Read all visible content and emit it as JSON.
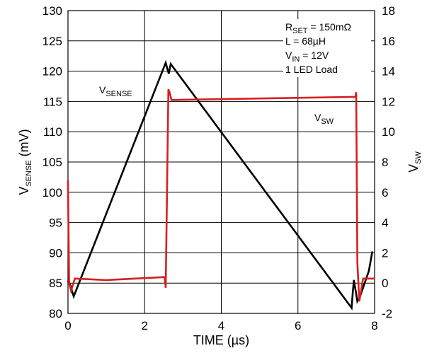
{
  "colors": {
    "background": "#ffffff",
    "grid": "#000000",
    "vsense": "#000000",
    "vsw": "#d62020"
  },
  "chart_data": {
    "type": "line",
    "grid": true,
    "xlabel": "TIME (µs)",
    "ylabel_left": {
      "main": "V",
      "sub": "SENSE",
      "rest": " (mV)"
    },
    "ylabel_right": {
      "main": "V",
      "sub": "SW",
      "rest": ""
    },
    "xlim": [
      0,
      8
    ],
    "ylim_left": [
      80,
      130
    ],
    "ylim_right": [
      -2,
      18
    ],
    "xticks": [
      0,
      2,
      4,
      6,
      8
    ],
    "yticks_left": [
      80,
      85,
      90,
      95,
      100,
      105,
      110,
      115,
      120,
      125,
      130
    ],
    "yticks_right": [
      -2,
      0,
      2,
      4,
      6,
      8,
      10,
      12,
      14,
      16,
      18
    ],
    "annotation_lines": [
      {
        "main": "R",
        "sub": "SET",
        "rest": " = 150mΩ"
      },
      {
        "main": "L = 68µH",
        "sub": "",
        "rest": ""
      },
      {
        "main": "V",
        "sub": "IN",
        "rest": " = 12V"
      },
      {
        "main": "1 LED Load",
        "sub": "",
        "rest": ""
      }
    ],
    "series": [
      {
        "name": "V_SENSE",
        "label": {
          "main": "V",
          "sub": "SENSE"
        },
        "axis": "left",
        "x": [
          0.0,
          0.05,
          0.15,
          2.55,
          2.6,
          2.63,
          2.68,
          7.4,
          7.43,
          7.46,
          7.55,
          7.62,
          7.85,
          7.94
        ],
        "y": [
          85.4,
          84.8,
          82.8,
          121.4,
          120.2,
          119.6,
          121.2,
          80.9,
          83.4,
          85.5,
          82.0,
          82.8,
          87.0,
          90.2
        ]
      },
      {
        "name": "V_SW",
        "label": {
          "main": "V",
          "sub": "SW"
        },
        "axis": "right",
        "x": [
          0.0,
          0.03,
          0.08,
          0.18,
          1.0,
          2.52,
          2.55,
          2.62,
          2.65,
          2.7,
          7.5,
          7.52,
          7.55,
          7.6,
          7.7,
          8.0
        ],
        "y": [
          6.8,
          0.0,
          -0.5,
          0.3,
          0.2,
          0.4,
          -0.3,
          12.8,
          12.6,
          12.1,
          12.3,
          12.6,
          1.4,
          -1.2,
          0.3,
          0.3
        ]
      }
    ]
  }
}
